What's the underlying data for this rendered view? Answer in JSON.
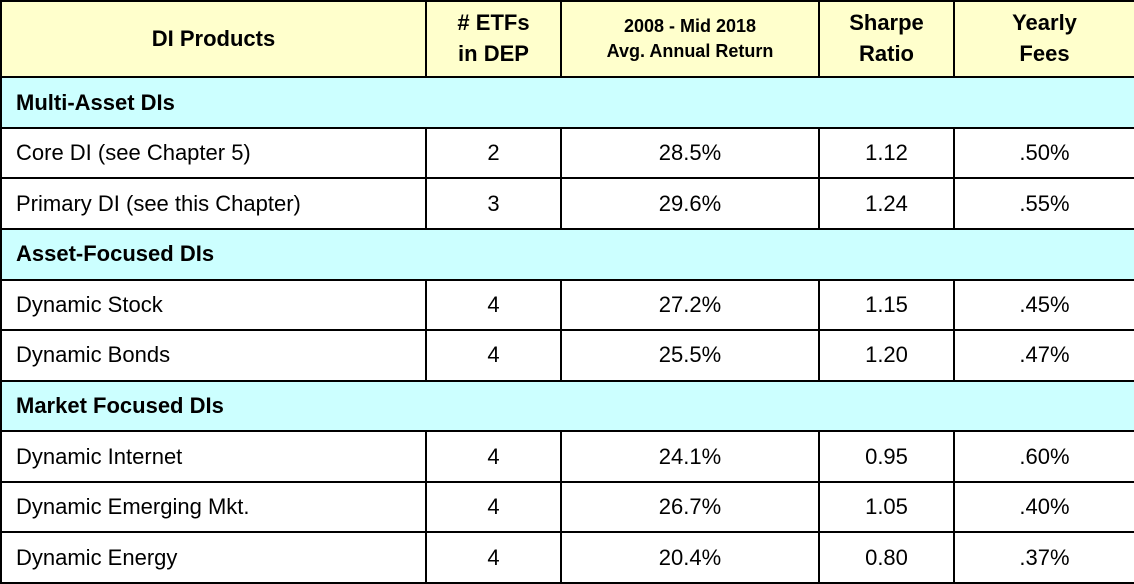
{
  "table": {
    "header": [
      [
        "DI Products"
      ],
      [
        "# ETFs",
        "in DEP"
      ],
      [
        "2008 - Mid 2018",
        "Avg. Annual Return"
      ],
      [
        "Sharpe",
        "Ratio"
      ],
      [
        "Yearly",
        "Fees"
      ]
    ],
    "sections": [
      {
        "title": "Multi-Asset DIs",
        "rows": [
          [
            "Core DI (see Chapter 5)",
            "2",
            "28.5%",
            "1.12",
            ".50%"
          ],
          [
            "Primary DI (see this Chapter)",
            "3",
            "29.6%",
            "1.24",
            ".55%"
          ]
        ]
      },
      {
        "title": "Asset-Focused DIs",
        "rows": [
          [
            "Dynamic Stock",
            "4",
            "27.2%",
            "1.15",
            ".45%"
          ],
          [
            "Dynamic Bonds",
            "4",
            "25.5%",
            "1.20",
            ".47%"
          ]
        ]
      },
      {
        "title": "Market Focused DIs",
        "rows": [
          [
            "Dynamic Internet",
            "4",
            "24.1%",
            "0.95",
            ".60%"
          ],
          [
            "Dynamic Emerging Mkt.",
            "4",
            "26.7%",
            "1.05",
            ".40%"
          ],
          [
            "Dynamic Energy",
            "4",
            "20.4%",
            "0.80",
            ".37%"
          ]
        ]
      }
    ]
  }
}
